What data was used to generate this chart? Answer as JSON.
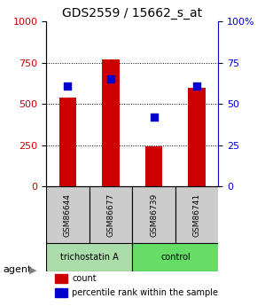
{
  "title": "GDS2559 / 15662_s_at",
  "samples": [
    "GSM86644",
    "GSM86677",
    "GSM86739",
    "GSM86741"
  ],
  "counts": [
    540,
    770,
    245,
    600
  ],
  "percentiles": [
    61,
    65,
    42,
    61
  ],
  "bar_color": "#cc0000",
  "dot_color": "#0000cc",
  "ylim_left": [
    0,
    1000
  ],
  "ylim_right": [
    0,
    100
  ],
  "yticks_left": [
    0,
    250,
    500,
    750,
    1000
  ],
  "yticks_right": [
    0,
    25,
    50,
    75,
    100
  ],
  "groups": [
    {
      "label": "trichostatin A",
      "samples": [
        0,
        1
      ],
      "color": "#aaddaa"
    },
    {
      "label": "control",
      "samples": [
        2,
        3
      ],
      "color": "#66dd66"
    }
  ],
  "agent_label": "agent",
  "legend_count_label": "count",
  "legend_pct_label": "percentile rank within the sample",
  "grid_color": "#000000",
  "tick_label_color_left": "#cc0000",
  "tick_label_color_right": "#0000cc",
  "bar_width": 0.4
}
